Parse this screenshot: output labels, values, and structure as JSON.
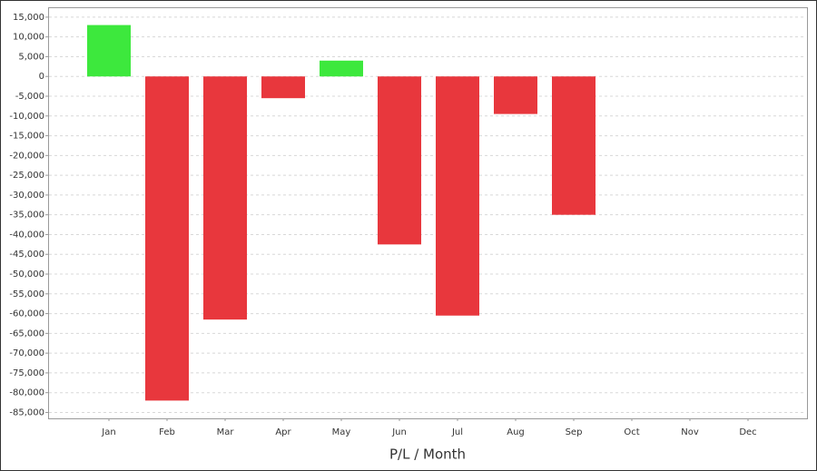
{
  "chart_data": {
    "type": "bar",
    "x_label": "P/L / Month",
    "categories": [
      "Jan",
      "Feb",
      "Mar",
      "Apr",
      "May",
      "Jun",
      "Jul",
      "Aug",
      "Sep",
      "Oct",
      "Nov",
      "Dec"
    ],
    "values": [
      13000,
      -82000,
      -61500,
      -5500,
      4000,
      -42500,
      -60500,
      -9500,
      -35000,
      null,
      null,
      null
    ],
    "positive_color": "#3de83d",
    "negative_color": "#e8373d",
    "ylim": [
      -86500,
      17500
    ],
    "yticks": [
      {
        "value": 15000,
        "label": "15,000"
      },
      {
        "value": 10000,
        "label": "10,000"
      },
      {
        "value": 5000,
        "label": "5,000"
      },
      0,
      {
        "value": -5000,
        "label": "-5,000"
      },
      {
        "value": -10000,
        "label": "-10,000"
      },
      {
        "value": -15000,
        "label": "-15,000"
      },
      {
        "value": -20000,
        "label": "-20,000"
      },
      {
        "value": -25000,
        "label": "-25,000"
      },
      {
        "value": -30000,
        "label": "-30,000"
      },
      {
        "value": -35000,
        "label": "-35,000"
      },
      {
        "value": -40000,
        "label": "-40,000"
      },
      {
        "value": -45000,
        "label": "-45,000"
      },
      {
        "value": -50000,
        "label": "-50,000"
      },
      {
        "value": -55000,
        "label": "-55,000"
      },
      {
        "value": -60000,
        "label": "-60,000"
      },
      {
        "value": -65000,
        "label": "-65,000"
      },
      {
        "value": -70000,
        "label": "-70,000"
      },
      {
        "value": -75000,
        "label": "-75,000"
      },
      {
        "value": -80000,
        "label": "-80,000"
      },
      {
        "value": -85000,
        "label": "-85,000"
      }
    ],
    "grid": true
  }
}
